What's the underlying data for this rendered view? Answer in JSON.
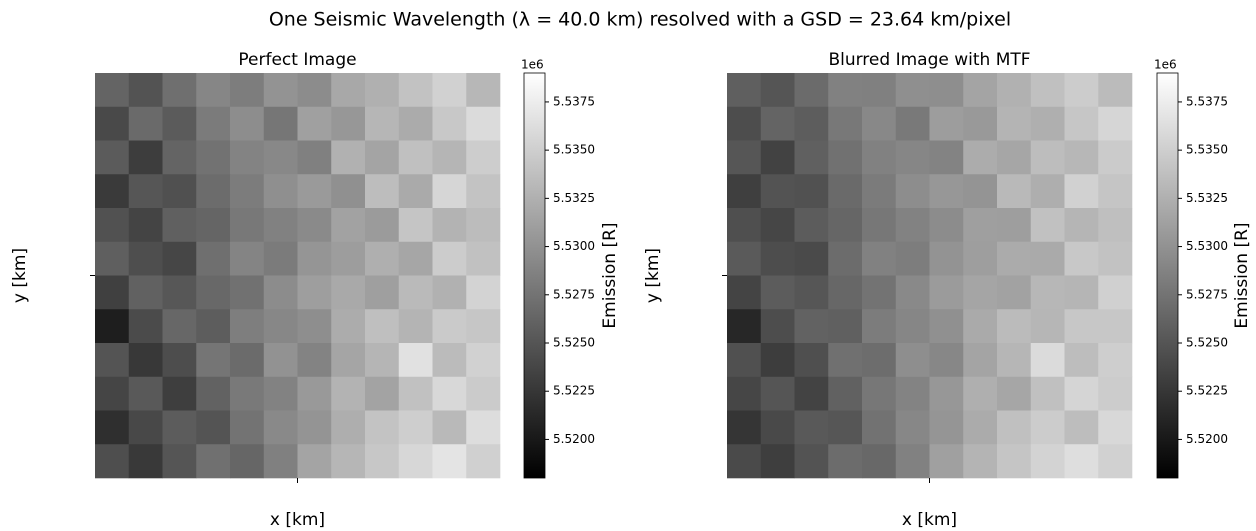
{
  "title": "One Seismic Wavelength (λ = 40.0 km) resolved with a GSD = 23.64 km/pixel",
  "chart_data": [
    {
      "type": "heatmap",
      "title": "Perfect Image",
      "xlabel": "x [km]",
      "ylabel": "y [km]",
      "colorbar_label": "Emission [R]",
      "colorbar_offset": "1e6",
      "colormap": "gray",
      "zlim": [
        5.518,
        5.539
      ],
      "zticks": [
        {
          "value": 5.52,
          "label": "5.5200"
        },
        5.5225,
        {
          "value": 5.525,
          "label": "5.5250"
        },
        5.5275,
        {
          "value": 5.53,
          "label": "5.5300"
        },
        5.5325,
        {
          "value": 5.535,
          "label": "5.5350"
        },
        5.5375
      ],
      "values": [
        [
          5.5262,
          5.5248,
          5.5271,
          5.529,
          5.5283,
          5.5301,
          5.5295,
          5.5318,
          5.5325,
          5.534,
          5.5352,
          5.5331
        ],
        [
          5.524,
          5.5267,
          5.5255,
          5.5281,
          5.5296,
          5.5277,
          5.5312,
          5.5304,
          5.533,
          5.5321,
          5.5345,
          5.536
        ],
        [
          5.5255,
          5.523,
          5.5262,
          5.5274,
          5.5288,
          5.5292,
          5.5285,
          5.5326,
          5.5315,
          5.5338,
          5.5329,
          5.5349
        ],
        [
          5.5228,
          5.5251,
          5.5246,
          5.5269,
          5.5282,
          5.5298,
          5.5307,
          5.5299,
          5.5336,
          5.532,
          5.5356,
          5.5341
        ],
        [
          5.5247,
          5.5236,
          5.5259,
          5.5263,
          5.5279,
          5.5286,
          5.5294,
          5.5313,
          5.5308,
          5.5342,
          5.5327,
          5.5335
        ],
        [
          5.5258,
          5.5244,
          5.5238,
          5.5271,
          5.5289,
          5.5281,
          5.5303,
          5.5309,
          5.5324,
          5.5317,
          5.5348,
          5.5339
        ],
        [
          5.5233,
          5.526,
          5.5252,
          5.5266,
          5.5273,
          5.5295,
          5.531,
          5.5319,
          5.5311,
          5.5333,
          5.5326,
          5.5354
        ],
        [
          5.5205,
          5.5242,
          5.5265,
          5.5257,
          5.5284,
          5.5291,
          5.5297,
          5.5322,
          5.5337,
          5.5328,
          5.5346,
          5.5343
        ],
        [
          5.5249,
          5.5226,
          5.5243,
          5.5276,
          5.5268,
          5.53,
          5.5288,
          5.5316,
          5.5329,
          5.5365,
          5.5334,
          5.5352
        ],
        [
          5.5237,
          5.5253,
          5.5231,
          5.5261,
          5.528,
          5.5287,
          5.5306,
          5.5327,
          5.5314,
          5.5339,
          5.5358,
          5.5347
        ],
        [
          5.5219,
          5.5239,
          5.5256,
          5.5249,
          5.5275,
          5.5293,
          5.5302,
          5.5323,
          5.5341,
          5.535,
          5.5332,
          5.5362
        ],
        [
          5.5244,
          5.5227,
          5.525,
          5.5272,
          5.5264,
          5.5285,
          5.5315,
          5.533,
          5.5344,
          5.5357,
          5.5368,
          5.5351
        ]
      ]
    },
    {
      "type": "heatmap",
      "title": "Blurred Image with MTF",
      "xlabel": "x [km]",
      "ylabel": "y [km]",
      "colorbar_label": "Emission [R]",
      "colorbar_offset": "1e6",
      "colormap": "gray",
      "zlim": [
        5.518,
        5.539
      ],
      "zticks": [
        {
          "value": 5.52,
          "label": "5.5200"
        },
        5.5225,
        {
          "value": 5.525,
          "label": "5.5250"
        },
        5.5275,
        {
          "value": 5.53,
          "label": "5.5300"
        },
        5.5325,
        {
          "value": 5.535,
          "label": "5.5350"
        },
        5.5375
      ],
      "values": [
        [
          5.5258,
          5.525,
          5.5268,
          5.5286,
          5.5285,
          5.5298,
          5.5297,
          5.5315,
          5.5326,
          5.5338,
          5.5348,
          5.5334
        ],
        [
          5.5243,
          5.5262,
          5.5257,
          5.5279,
          5.5292,
          5.528,
          5.5309,
          5.5306,
          5.5328,
          5.5324,
          5.5343,
          5.5356
        ],
        [
          5.5251,
          5.5234,
          5.5259,
          5.5273,
          5.5286,
          5.529,
          5.5288,
          5.5322,
          5.5317,
          5.5336,
          5.5331,
          5.5347
        ],
        [
          5.5232,
          5.5248,
          5.5247,
          5.5267,
          5.5281,
          5.5296,
          5.5304,
          5.5302,
          5.5332,
          5.5323,
          5.5352,
          5.5342
        ],
        [
          5.5245,
          5.5238,
          5.5256,
          5.5264,
          5.5278,
          5.5287,
          5.5295,
          5.5311,
          5.531,
          5.5339,
          5.5329,
          5.5337
        ],
        [
          5.5254,
          5.5243,
          5.5241,
          5.5269,
          5.5286,
          5.5283,
          5.5301,
          5.531,
          5.5321,
          5.532,
          5.5345,
          5.534
        ],
        [
          5.5236,
          5.5256,
          5.5251,
          5.5265,
          5.5275,
          5.5293,
          5.5308,
          5.5316,
          5.5313,
          5.5331,
          5.5329,
          5.5351
        ],
        [
          5.5212,
          5.5243,
          5.5261,
          5.5259,
          5.5282,
          5.529,
          5.5299,
          5.532,
          5.5334,
          5.533,
          5.5344,
          5.5344
        ],
        [
          5.5246,
          5.523,
          5.5245,
          5.5272,
          5.527,
          5.5297,
          5.5291,
          5.5315,
          5.533,
          5.536,
          5.5336,
          5.535
        ],
        [
          5.5238,
          5.525,
          5.5235,
          5.526,
          5.5278,
          5.5288,
          5.5304,
          5.5324,
          5.5317,
          5.5338,
          5.5355,
          5.5348
        ],
        [
          5.5224,
          5.524,
          5.5253,
          5.5251,
          5.5274,
          5.5291,
          5.5303,
          5.5321,
          5.5338,
          5.5348,
          5.5336,
          5.5358
        ],
        [
          5.5241,
          5.5231,
          5.5248,
          5.5269,
          5.5266,
          5.5286,
          5.5312,
          5.5328,
          5.5342,
          5.5354,
          5.5363,
          5.5352
        ]
      ]
    }
  ]
}
